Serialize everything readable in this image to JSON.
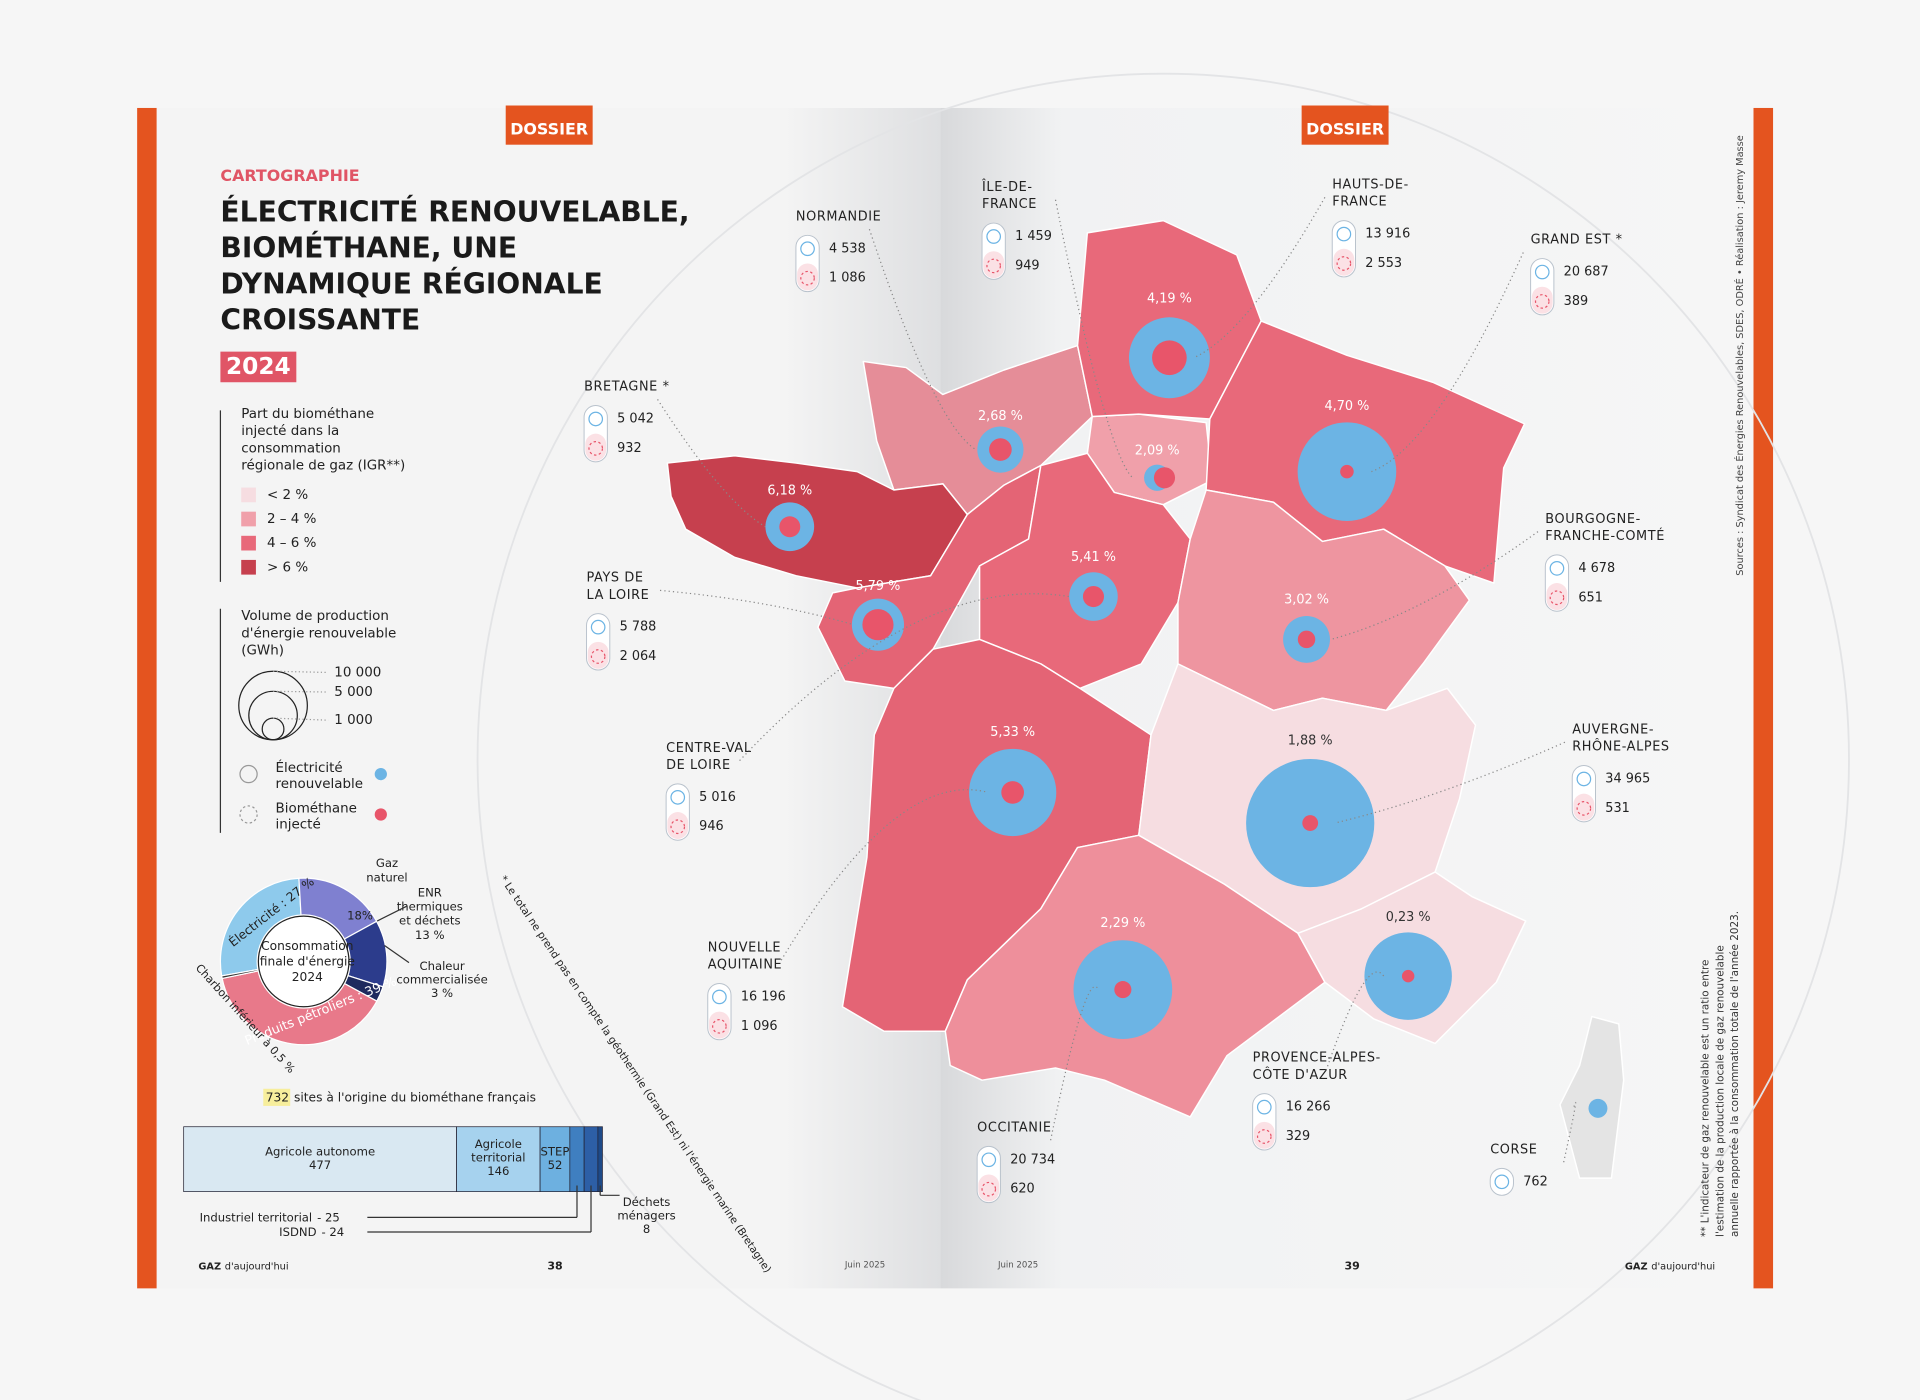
{
  "left_page": {
    "tag": "DOSSIER",
    "kicker": "CARTOGRAPHIE",
    "title": [
      "ÉLECTRICITÉ RENOUVELABLE,",
      "BIOMÉTHANE, UNE",
      "DYNAMIQUE RÉGIONALE",
      "CROISSANTE"
    ],
    "year": "2024",
    "igr_legend": {
      "title": [
        "Part du biométhane",
        "injecté dans la",
        "consommation",
        "régionale de gaz (IGR**)"
      ],
      "items": [
        {
          "label": "< 2 %",
          "color": "#f6dde1"
        },
        {
          "label": "2 – 4 %",
          "color": "#f0a0aa"
        },
        {
          "label": "4 – 6 %",
          "color": "#e8697a"
        },
        {
          "label": "> 6 %",
          "color": "#c6404e"
        }
      ]
    },
    "volume_legend": {
      "title": [
        "Volume de production",
        "d'énergie renouvelable",
        "(GWh)"
      ],
      "sizes": [
        {
          "value": 10000,
          "label": "10 000"
        },
        {
          "value": 5000,
          "label": "5 000"
        },
        {
          "value": 1000,
          "label": "1 000"
        }
      ],
      "electricity": {
        "label": [
          "Électricité",
          "renouvelable"
        ],
        "color": "#6cb4e4"
      },
      "biomethane": {
        "label": [
          "Biométhane",
          "injecté"
        ],
        "color": "#e8556a"
      }
    },
    "energy_mix": {
      "center": [
        "Consommation",
        "finale d'énergie",
        "2024"
      ],
      "segments": [
        {
          "label": "Électricité : 27 %",
          "value": 27,
          "color": "#8ecaec"
        },
        {
          "name": [
            "Gaz",
            "naturel"
          ],
          "label": "18%",
          "value": 18,
          "color": "#7f80d0"
        },
        {
          "name": [
            "ENR",
            "thermiques",
            "et déchets"
          ],
          "label": "13 %",
          "value": 13,
          "color": "#2c3c8c"
        },
        {
          "name": [
            "Chaleur",
            "commercialisée"
          ],
          "label": "3 %",
          "value": 3,
          "color": "#1f2a5e"
        },
        {
          "label": "Produits pétroliers : 39 %",
          "value": 39,
          "color": "#e8798a"
        },
        {
          "label": "Charbon inférieur à 0,5 %",
          "value": 0.5,
          "color": "#333333"
        }
      ]
    },
    "sites": {
      "total": 732,
      "title": "sites à l'origine du biométhane français",
      "categories": [
        [
          "Agricole autonome"
        ],
        [
          "Agricole",
          "territorial"
        ],
        [
          "STEP"
        ],
        [
          "Industriel territorial"
        ],
        [
          "ISDND"
        ],
        [
          "Déchets",
          "ménagers"
        ]
      ],
      "values": [
        477,
        146,
        52,
        25,
        24,
        8
      ],
      "value_labels": [
        "477",
        "146",
        "52",
        "- 25",
        "- 24",
        "8"
      ],
      "colors": [
        "#d9e8f2",
        "#a6d2ee",
        "#6db0e0",
        "#3f7fc0",
        "#2d5fa6",
        "#1e4a88"
      ]
    },
    "note": "* Le total ne prend pas en compte la géothermie (Grand Est) ni l'énergie marine (Bretagne)",
    "footer": {
      "brand_bold": "GAZ",
      "brand": "d'aujourd'hui",
      "page": "38",
      "date": "Juin 2025"
    }
  },
  "right_page": {
    "tag": "DOSSIER",
    "sources": "Sources : Syndicat des Énergies Renouvelables, SDES, ODRÉ  •  Réalisation : Jeremy Masse",
    "igr_note": [
      "** L'indicateur de gaz renouvelable est un ratio entre",
      "l'estimation de la production locale de gaz renouvelable",
      "annuelle rapportée à la consommation totale de l'année 2023."
    ],
    "footer": {
      "brand_bold": "GAZ",
      "brand": "d'aujourd'hui",
      "page": "39",
      "date": "Juin 2025"
    }
  },
  "regions": [
    {
      "name": [
        "NORMANDIE"
      ],
      "igr": "2,68 %",
      "color": "#e58d98",
      "elec": {
        "value": 4538,
        "label": "4 538"
      },
      "bio": {
        "value": 1086,
        "label": "1 086"
      }
    },
    {
      "name": [
        "ÎLE-DE-",
        "FRANCE"
      ],
      "igr": "2,09 %",
      "color": "#f0a0aa",
      "elec": {
        "value": 1459,
        "label": "1 459"
      },
      "bio": {
        "value": 949,
        "label": "949"
      }
    },
    {
      "name": [
        "HAUTS-DE-",
        "FRANCE"
      ],
      "igr": "4,19 %",
      "color": "#e8697a",
      "elec": {
        "value": 13916,
        "label": "13 916"
      },
      "bio": {
        "value": 2553,
        "label": "2 553"
      }
    },
    {
      "name": [
        "GRAND EST *"
      ],
      "igr": "4,70 %",
      "color": "#e8697a",
      "elec": {
        "value": 20687,
        "label": "20 687"
      },
      "bio": {
        "value": 389,
        "label": "389"
      }
    },
    {
      "name": [
        "BRETAGNE *"
      ],
      "igr": "6,18 %",
      "color": "#c6404e",
      "elec": {
        "value": 5042,
        "label": "5 042"
      },
      "bio": {
        "value": 932,
        "label": "932"
      }
    },
    {
      "name": [
        "PAYS DE",
        "LA LOIRE"
      ],
      "igr": "5,79 %",
      "color": "#e46475",
      "elec": {
        "value": 5788,
        "label": "5 788"
      },
      "bio": {
        "value": 2064,
        "label": "2 064"
      }
    },
    {
      "name": [
        "CENTRE-VAL",
        "DE LOIRE"
      ],
      "igr": "5,41 %",
      "color": "#e8697a",
      "elec": {
        "value": 5016,
        "label": "5 016"
      },
      "bio": {
        "value": 946,
        "label": "946"
      }
    },
    {
      "name": [
        "BOURGOGNE-",
        "FRANCHE-COMTÉ"
      ],
      "igr": "3,02 %",
      "color": "#ee95a0",
      "elec": {
        "value": 4678,
        "label": "4 678"
      },
      "bio": {
        "value": 651,
        "label": "651"
      }
    },
    {
      "name": [
        "NOUVELLE",
        "AQUITAINE"
      ],
      "igr": "5,33 %",
      "color": "#e46475",
      "elec": {
        "value": 16196,
        "label": "16 196"
      },
      "bio": {
        "value": 1096,
        "label": "1 096"
      }
    },
    {
      "name": [
        "AUVERGNE-",
        "RHÔNE-ALPES"
      ],
      "igr": "1,88 %",
      "color": "#f6dde1",
      "elec": {
        "value": 34965,
        "label": "34 965"
      },
      "bio": {
        "value": 531,
        "label": "531"
      }
    },
    {
      "name": [
        "OCCITANIE"
      ],
      "igr": "2,29 %",
      "color": "#ee8f9b",
      "elec": {
        "value": 20734,
        "label": "20 734"
      },
      "bio": {
        "value": 620,
        "label": "620"
      }
    },
    {
      "name": [
        "PROVENCE-ALPES-",
        "CÔTE D'AZUR"
      ],
      "igr": "0,23 %",
      "color": "#f6dde1",
      "elec": {
        "value": 16266,
        "label": "16 266"
      },
      "bio": {
        "value": 329,
        "label": "329"
      }
    },
    {
      "name": [
        "CORSE"
      ],
      "color": "#e4e4e4",
      "elec": {
        "value": 762,
        "label": "762"
      }
    }
  ]
}
